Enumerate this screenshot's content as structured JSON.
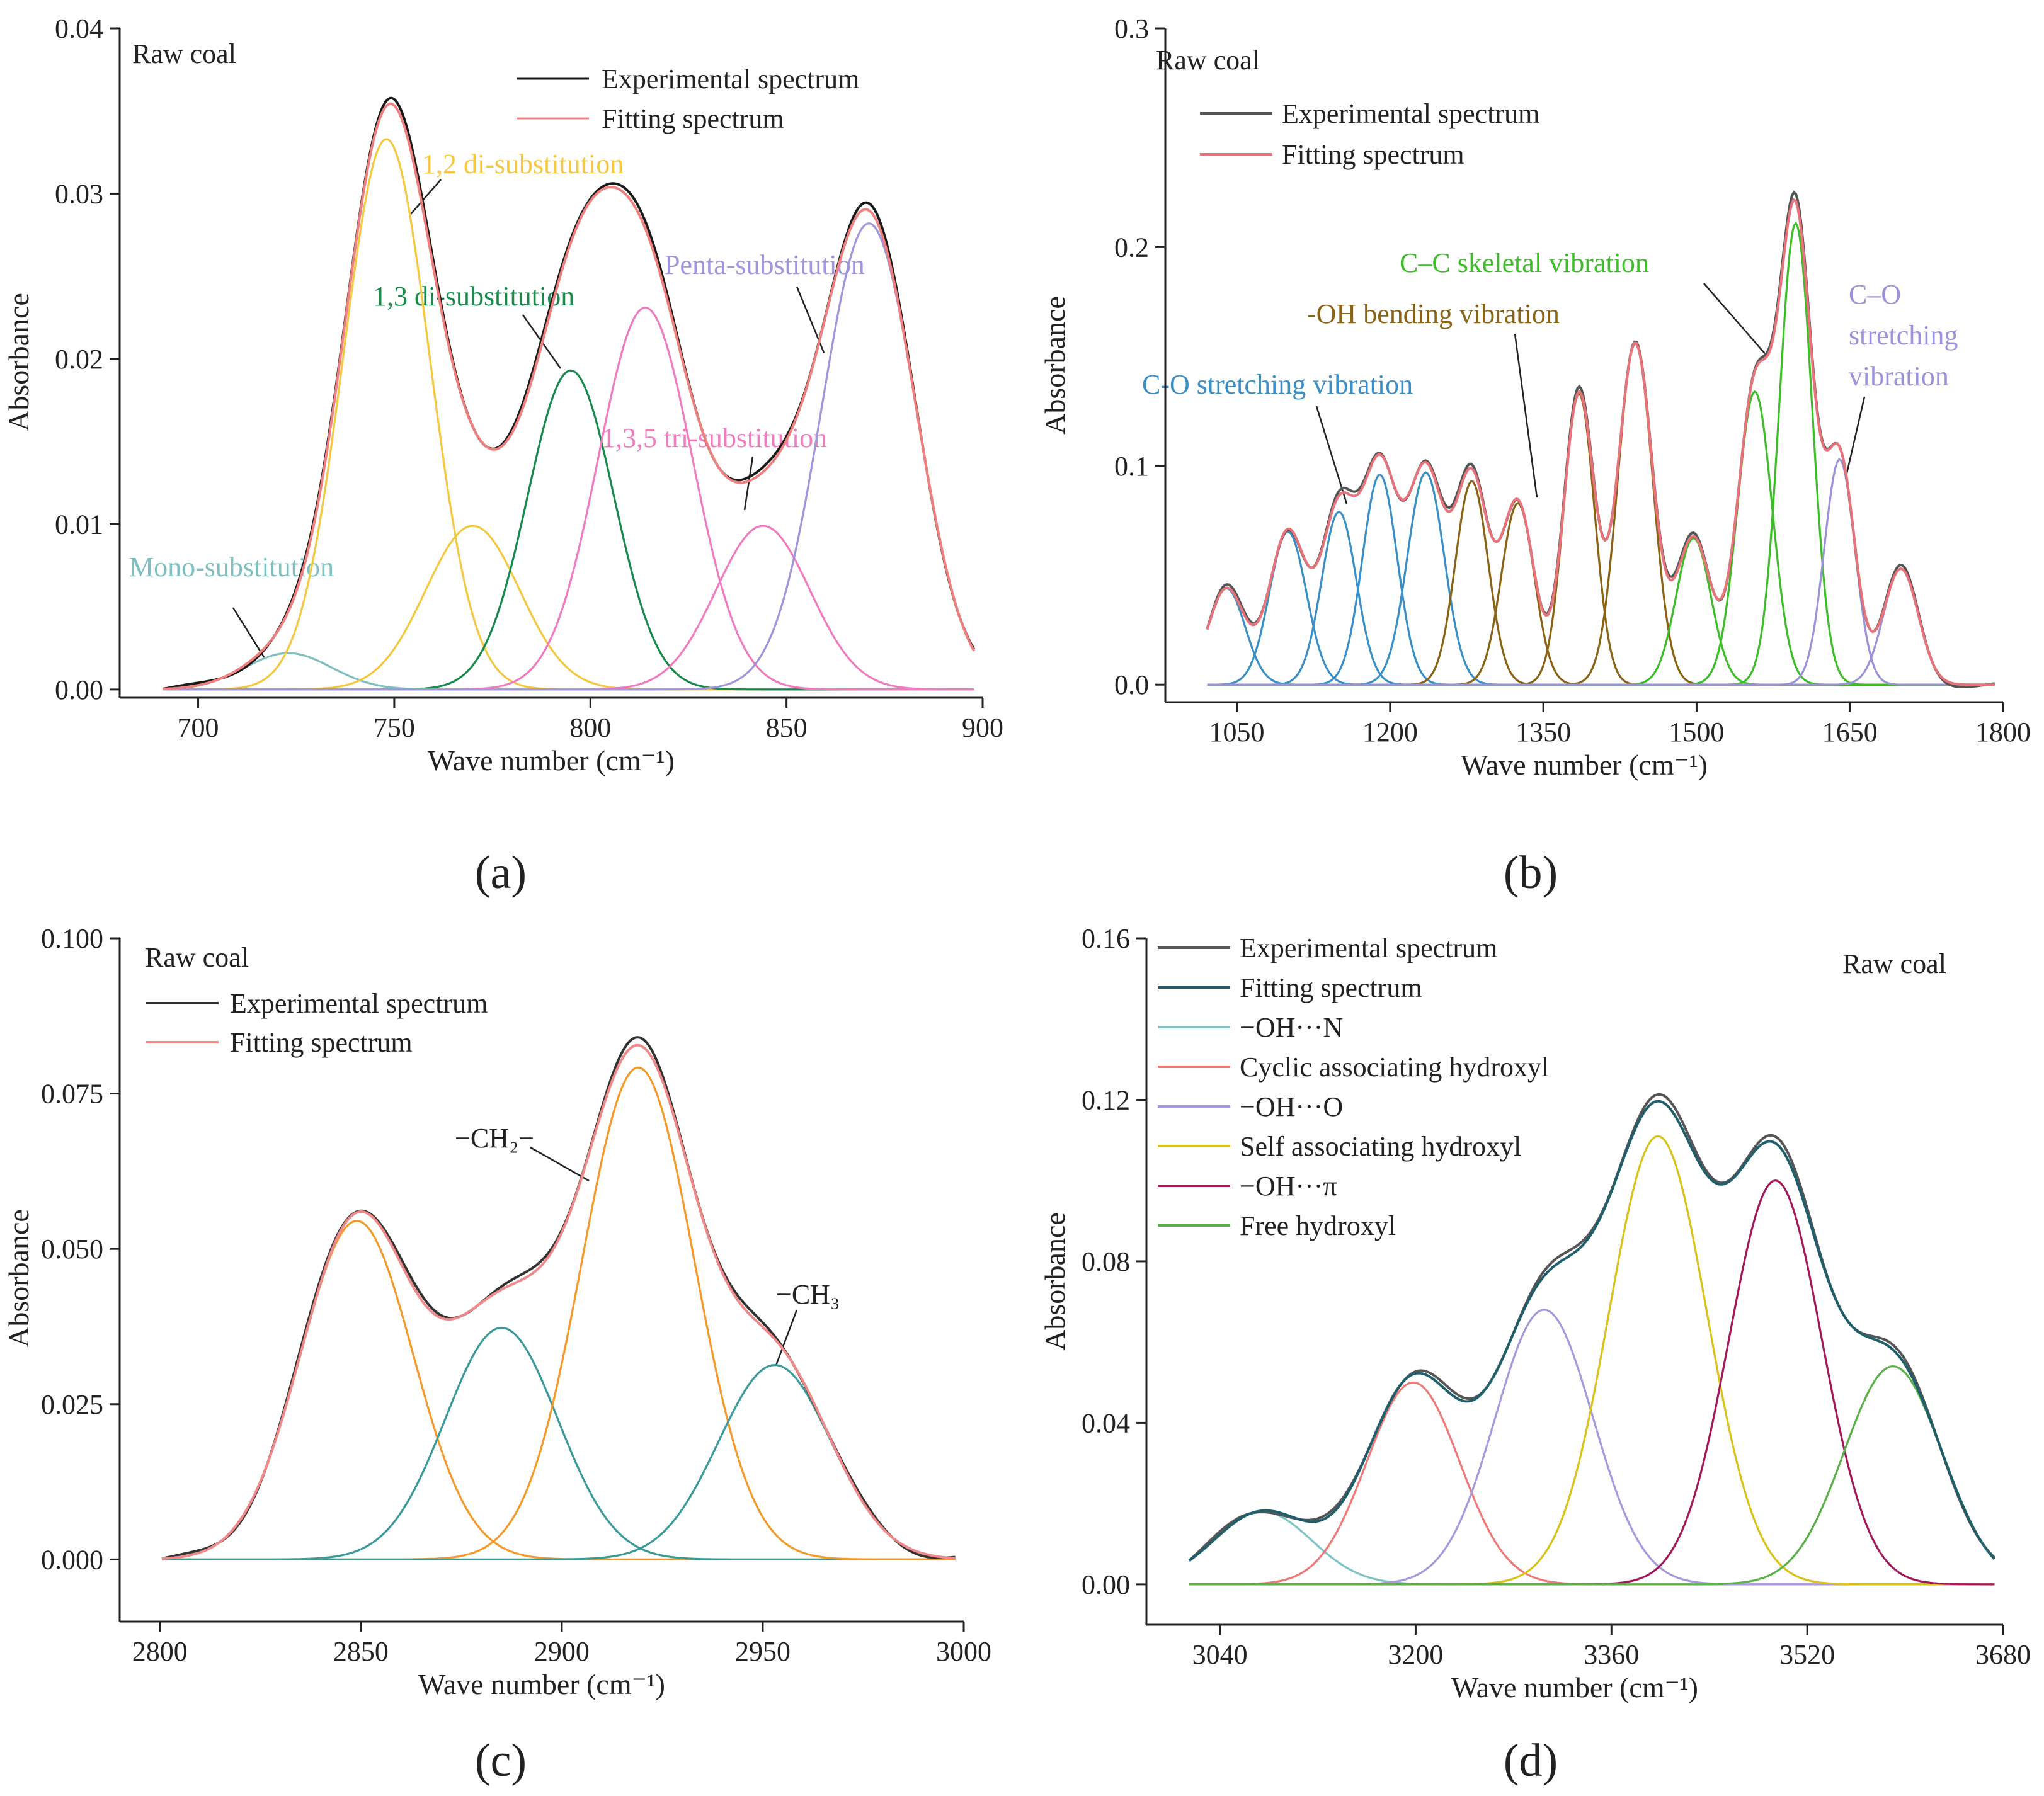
{
  "figure": {
    "panels": [
      {
        "id": "a",
        "label": "(a)",
        "label_letter": "a"
      },
      {
        "id": "b",
        "label": "(b)",
        "label_letter": "b"
      },
      {
        "id": "c",
        "label": "(c)",
        "label_letter": "c"
      },
      {
        "id": "d",
        "label": "(d)",
        "label_letter": "d"
      }
    ]
  },
  "chart_data": [
    {
      "id": "a",
      "type": "line",
      "title": "",
      "sample_label": "Raw coal",
      "xlabel": "Wave number (cm⁻¹)",
      "ylabel": "Absorbance",
      "xlim": [
        680,
        900
      ],
      "ylim": [
        -0.0005,
        0.04
      ],
      "xticks": [
        700,
        750,
        800,
        850,
        900
      ],
      "yticks": [
        0.0,
        0.01,
        0.02,
        0.03,
        0.04
      ],
      "ytick_labels": [
        "0.00",
        "0.01",
        "0.02",
        "0.03",
        "0.04"
      ],
      "baseline": 0,
      "legend": [
        {
          "name": "Experimental spectrum",
          "color": "#1a1a1a"
        },
        {
          "name": "Fitting spectrum",
          "color": "#f08080"
        }
      ],
      "components": [
        {
          "center": 723,
          "amplitude": 0.0022,
          "sigma": 11,
          "color": "#7fbfbf"
        },
        {
          "center": 748,
          "amplitude": 0.0333,
          "sigma": 11,
          "color": "#f5c842"
        },
        {
          "center": 770,
          "amplitude": 0.0099,
          "sigma": 12,
          "color": "#f5c842"
        },
        {
          "center": 795,
          "amplitude": 0.0193,
          "sigma": 11,
          "color": "#178a4c"
        },
        {
          "center": 814,
          "amplitude": 0.0231,
          "sigma": 12,
          "color": "#f07cbf"
        },
        {
          "center": 844,
          "amplitude": 0.0099,
          "sigma": 12,
          "color": "#f07cbf"
        },
        {
          "center": 871,
          "amplitude": 0.0282,
          "sigma": 12,
          "color": "#9f96dd"
        }
      ],
      "annotations": [
        {
          "text": "Mono-substitution",
          "color": "#7fbfbf"
        },
        {
          "text": "1,2 di-substitution",
          "color": "#f5c842"
        },
        {
          "text": "1,3 di-substitution",
          "color": "#178a4c"
        },
        {
          "text": "1,3,5 tri-substitution",
          "color": "#f07cbf"
        },
        {
          "text": "Penta-substitution",
          "color": "#9f96dd"
        }
      ]
    },
    {
      "id": "b",
      "type": "line",
      "title": "",
      "sample_label": "Raw coal",
      "xlabel": "Wave number (cm⁻¹)",
      "ylabel": "Absorbance",
      "xlim": [
        980,
        1800
      ],
      "ylim": [
        -0.008,
        0.3
      ],
      "xticks": [
        1050,
        1200,
        1350,
        1500,
        1650,
        1800
      ],
      "yticks": [
        0.0,
        0.1,
        0.2,
        0.3
      ],
      "ytick_labels": [
        "0.0",
        "0.1",
        "0.2",
        "0.3"
      ],
      "baseline": 0,
      "legend": [
        {
          "name": "Experimental spectrum",
          "color": "#555555"
        },
        {
          "name": "Fitting spectrum",
          "color": "#e8737a"
        }
      ],
      "components": [
        {
          "center": 1040,
          "amplitude": 0.044,
          "sigma": 18,
          "color": "#3a8fc6"
        },
        {
          "center": 1100,
          "amplitude": 0.07,
          "sigma": 18,
          "color": "#3a8fc6"
        },
        {
          "center": 1150,
          "amplitude": 0.079,
          "sigma": 17,
          "color": "#3a8fc6"
        },
        {
          "center": 1190,
          "amplitude": 0.096,
          "sigma": 17,
          "color": "#3a8fc6"
        },
        {
          "center": 1235,
          "amplitude": 0.097,
          "sigma": 18,
          "color": "#3a8fc6"
        },
        {
          "center": 1280,
          "amplitude": 0.093,
          "sigma": 16,
          "color": "#8a6414"
        },
        {
          "center": 1325,
          "amplitude": 0.083,
          "sigma": 16,
          "color": "#8a6414"
        },
        {
          "center": 1385,
          "amplitude": 0.133,
          "sigma": 15,
          "color": "#8a6414"
        },
        {
          "center": 1440,
          "amplitude": 0.156,
          "sigma": 17,
          "color": "#8a6414"
        },
        {
          "center": 1497,
          "amplitude": 0.067,
          "sigma": 17,
          "color": "#3ebd2a"
        },
        {
          "center": 1557,
          "amplitude": 0.134,
          "sigma": 17,
          "color": "#3ebd2a"
        },
        {
          "center": 1597,
          "amplitude": 0.211,
          "sigma": 16,
          "color": "#3ebd2a"
        },
        {
          "center": 1640,
          "amplitude": 0.103,
          "sigma": 15,
          "color": "#9a93d9"
        },
        {
          "center": 1700,
          "amplitude": 0.053,
          "sigma": 17,
          "color": "#9a93d9"
        }
      ],
      "annotations": [
        {
          "text": "C-O stretching vibration",
          "color": "#3a8fc6"
        },
        {
          "text": "-OH bending vibration",
          "color": "#8a6414"
        },
        {
          "text": "C–C skeletal vibration",
          "color": "#3ebd2a"
        },
        {
          "text": "C–O",
          "color": "#9a93d9"
        },
        {
          "text": "stretching",
          "color": "#9a93d9"
        },
        {
          "text": "vibration",
          "color": "#9a93d9"
        }
      ]
    },
    {
      "id": "c",
      "type": "line",
      "title": "",
      "sample_label": "Raw coal",
      "xlabel": "Wave number (cm⁻¹)",
      "ylabel": "Absorbance",
      "xlim": [
        2790,
        3000
      ],
      "ylim": [
        -0.01,
        0.1
      ],
      "xticks": [
        2800,
        2850,
        2900,
        2950,
        3000
      ],
      "yticks": [
        0.0,
        0.025,
        0.05,
        0.075,
        0.1
      ],
      "ytick_labels": [
        "0.000",
        "0.025",
        "0.050",
        "0.075",
        "0.100"
      ],
      "baseline": 0,
      "legend": [
        {
          "name": "Experimental spectrum",
          "color": "#333333"
        },
        {
          "name": "Fitting spectrum",
          "color": "#f08a8a"
        }
      ],
      "components": [
        {
          "center": 2849,
          "amplitude": 0.0545,
          "sigma": 14,
          "color": "#f59a2a"
        },
        {
          "center": 2885,
          "amplitude": 0.0373,
          "sigma": 14,
          "color": "#3a9a9a"
        },
        {
          "center": 2919,
          "amplitude": 0.0792,
          "sigma": 14,
          "color": "#f59a2a"
        },
        {
          "center": 2953,
          "amplitude": 0.0313,
          "sigma": 14,
          "color": "#3a9a9a"
        }
      ],
      "annotations": [
        {
          "text": "−CH₂−",
          "color": "#222222"
        },
        {
          "text": "−CH₃",
          "color": "#222222"
        }
      ]
    },
    {
      "id": "d",
      "type": "line",
      "title": "",
      "sample_label": "Raw coal",
      "xlabel": "Wave number (cm⁻¹)",
      "ylabel": "Absorbance",
      "xlim": [
        2980,
        3680
      ],
      "ylim": [
        -0.01,
        0.16
      ],
      "xticks": [
        3040,
        3200,
        3360,
        3520,
        3680
      ],
      "yticks": [
        0.0,
        0.04,
        0.08,
        0.12,
        0.16
      ],
      "ytick_labels": [
        "0.00",
        "0.04",
        "0.08",
        "0.12",
        "0.16"
      ],
      "baseline": 0,
      "legend": [
        {
          "name": "Experimental spectrum",
          "color": "#555555"
        },
        {
          "name": "Fitting spectrum",
          "color": "#1f5f6b"
        },
        {
          "name": "−OH···N",
          "color": "#7fc4c4"
        },
        {
          "name": "Cyclic associating hydroxyl",
          "color": "#f07878"
        },
        {
          "name": "−OH···O",
          "color": "#a899dd"
        },
        {
          "name": "Self associating hydroxyl",
          "color": "#d9c21a"
        },
        {
          "name": "−OH···π",
          "color": "#a3185a"
        },
        {
          "name": "Free hydroxyl",
          "color": "#5ab14a"
        }
      ],
      "components": [
        {
          "center": 3075,
          "amplitude": 0.018,
          "sigma": 40,
          "color": "#7fc4c4"
        },
        {
          "center": 3198,
          "amplitude": 0.05,
          "sigma": 38,
          "color": "#f07878"
        },
        {
          "center": 3305,
          "amplitude": 0.068,
          "sigma": 40,
          "color": "#a899dd"
        },
        {
          "center": 3398,
          "amplitude": 0.111,
          "sigma": 40,
          "color": "#d9c21a"
        },
        {
          "center": 3494,
          "amplitude": 0.1,
          "sigma": 38,
          "color": "#a3185a"
        },
        {
          "center": 3590,
          "amplitude": 0.054,
          "sigma": 40,
          "color": "#5ab14a"
        }
      ],
      "annotations": []
    }
  ]
}
